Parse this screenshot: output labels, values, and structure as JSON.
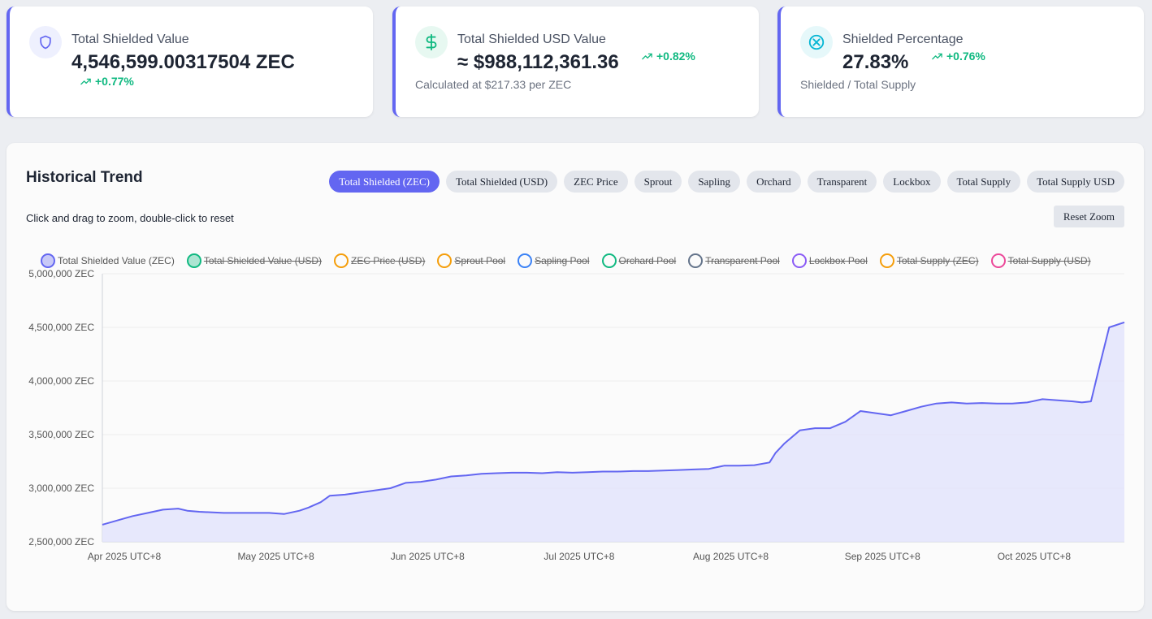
{
  "cards": [
    {
      "title": "Total Shielded Value",
      "value": "4,546,599.00317504 ZEC",
      "delta": "+0.77%",
      "sub": ""
    },
    {
      "title": "Total Shielded USD Value",
      "value": "≈ $988,112,361.36",
      "delta": "+0.82%",
      "sub": "Calculated at $217.33 per ZEC"
    },
    {
      "title": "Shielded Percentage",
      "value": "27.83%",
      "delta": "+0.76%",
      "sub": "Shielded / Total Supply"
    }
  ],
  "colors": {
    "accent": "#6366f1",
    "positive": "#10b981",
    "line": "#6366f1",
    "area": "#e3e4fb"
  },
  "trend": {
    "title": "Historical Trend",
    "hint": "Click and drag to zoom, double-click to reset",
    "reset_label": "Reset Zoom",
    "tabs": [
      "Total Shielded (ZEC)",
      "Total Shielded (USD)",
      "ZEC Price",
      "Sprout",
      "Sapling",
      "Orchard",
      "Transparent",
      "Lockbox",
      "Total Supply",
      "Total Supply USD"
    ],
    "active_tab": "Total Shielded (ZEC)"
  },
  "chart_data": {
    "type": "area",
    "title": "",
    "xlabel": "",
    "ylabel": "",
    "ylim": [
      2500000,
      5000000
    ],
    "yticks": [
      "5,000,000 ZEC",
      "4,500,000 ZEC",
      "4,000,000 ZEC",
      "3,500,000 ZEC",
      "3,000,000 ZEC",
      "2,500,000 ZEC"
    ],
    "xticks": [
      "Apr 2025 UTC+8",
      "May 2025 UTC+8",
      "Jun 2025 UTC+8",
      "Jul 2025 UTC+8",
      "Aug 2025 UTC+8",
      "Sep 2025 UTC+8",
      "Oct 2025 UTC+8"
    ],
    "legend": [
      {
        "label": "Total Shielded Value (ZEC)",
        "color": "#6366f1",
        "visible": true
      },
      {
        "label": "Total Shielded Value (USD)",
        "color": "#10b981",
        "visible": false
      },
      {
        "label": "ZEC Price (USD)",
        "color": "#f59e0b",
        "visible": false
      },
      {
        "label": "Sprout Pool",
        "color": "#f59e0b",
        "visible": false
      },
      {
        "label": "Sapling Pool",
        "color": "#3b82f6",
        "visible": false
      },
      {
        "label": "Orchard Pool",
        "color": "#10b981",
        "visible": false
      },
      {
        "label": "Transparent Pool",
        "color": "#64748b",
        "visible": false
      },
      {
        "label": "Lockbox Pool",
        "color": "#8b5cf6",
        "visible": false
      },
      {
        "label": "Total Supply (ZEC)",
        "color": "#f59e0b",
        "visible": false
      },
      {
        "label": "Total Supply (USD)",
        "color": "#ec4899",
        "visible": false
      }
    ],
    "series": [
      {
        "name": "Total Shielded Value (ZEC)",
        "x_days": [
          0,
          5,
          10,
          15,
          20,
          25,
          28,
          32,
          40,
          45,
          50,
          55,
          60,
          65,
          68,
          72,
          75,
          80,
          85,
          90,
          95,
          100,
          105,
          110,
          115,
          120,
          125,
          130,
          135,
          140,
          145,
          150,
          155,
          160,
          165,
          170,
          175,
          180,
          185,
          190,
          195,
          200,
          205,
          210,
          215,
          220,
          222,
          225,
          230,
          235,
          240,
          245,
          250,
          255,
          260,
          265,
          270,
          275,
          280,
          285,
          290,
          295,
          300,
          305,
          310,
          315,
          320,
          323,
          326,
          329,
          332,
          337
        ],
        "values": [
          2660000,
          2700000,
          2740000,
          2770000,
          2800000,
          2810000,
          2790000,
          2780000,
          2770000,
          2770000,
          2770000,
          2770000,
          2760000,
          2790000,
          2820000,
          2870000,
          2930000,
          2940000,
          2960000,
          2980000,
          3000000,
          3050000,
          3060000,
          3080000,
          3110000,
          3120000,
          3135000,
          3140000,
          3145000,
          3145000,
          3140000,
          3150000,
          3145000,
          3150000,
          3155000,
          3155000,
          3160000,
          3160000,
          3165000,
          3170000,
          3175000,
          3180000,
          3210000,
          3210000,
          3215000,
          3240000,
          3330000,
          3420000,
          3540000,
          3560000,
          3560000,
          3620000,
          3720000,
          3700000,
          3680000,
          3720000,
          3760000,
          3790000,
          3800000,
          3790000,
          3795000,
          3790000,
          3790000,
          3800000,
          3830000,
          3820000,
          3810000,
          3800000,
          3810000,
          4160000,
          4500000,
          4546599
        ]
      }
    ],
    "x_tick_days": [
      0,
      50,
      100,
      150,
      200,
      250,
      300
    ]
  }
}
